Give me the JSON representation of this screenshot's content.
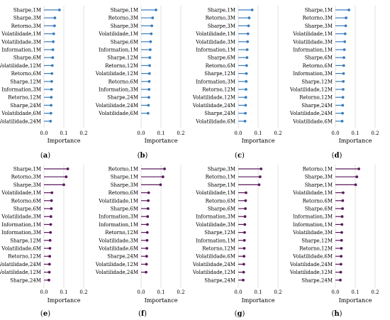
{
  "chart_data": [
    {
      "type": "lollipop",
      "panel_label": "a",
      "xlabel": "Importance",
      "xlim": [
        0,
        0.2
      ],
      "xticks": [
        "0.0",
        "0.1",
        "0.2"
      ],
      "color": "#3a7ebf",
      "categories": [
        "Sharpe,1M",
        "Sharpe,3M",
        "Retorno,3M",
        "Volatilidade,1M",
        "Volatilidade,3M",
        "Information,1M",
        "Sharpe,6M",
        "Volatilidade,12M",
        "Retorno,6M",
        "Sharpe,12M",
        "Information,3M",
        "Retorno,12M",
        "Sharpe,24M",
        "Volatilidade,6M",
        "Volatilidade,24M"
      ],
      "values": [
        0.078,
        0.055,
        0.053,
        0.049,
        0.047,
        0.045,
        0.044,
        0.042,
        0.04,
        0.039,
        0.038,
        0.037,
        0.036,
        0.035,
        0.033
      ]
    },
    {
      "type": "lollipop",
      "panel_label": "b",
      "xlabel": "Importance",
      "xlim": [
        0,
        0.2
      ],
      "xticks": [
        "0.0",
        "0.1",
        "0.2"
      ],
      "color": "#3a7ebf",
      "categories": [
        "Sharpe,1M",
        "Retorno,3M",
        "Sharpe,3M",
        "Volatilidade,1M",
        "Sharpe,6M",
        "Information,1M",
        "Sharpe,12M",
        "Retorno,12M",
        "Volatilidade,12M",
        "Retorno,6M",
        "Information,3M",
        "Sharpe,24M",
        "Volatilidade,24M",
        "Volatilidade,6M"
      ],
      "values": [
        0.075,
        0.058,
        0.054,
        0.051,
        0.048,
        0.046,
        0.044,
        0.043,
        0.042,
        0.041,
        0.04,
        0.039,
        0.037,
        0.035
      ]
    },
    {
      "type": "lollipop",
      "panel_label": "c",
      "xlabel": "Importance",
      "xlim": [
        0,
        0.2
      ],
      "xticks": [
        "0.0",
        "0.1",
        "0.2"
      ],
      "color": "#3a7ebf",
      "categories": [
        "Sharpe,1M",
        "Retorno,3M",
        "Sharpe,3M",
        "Volatilidade,1M",
        "Volatilidade,3M",
        "Information,1M",
        "Sharpe,6M",
        "Retorno,6M",
        "Sharpe,12M",
        "Information,3M",
        "Retorno,12M",
        "Volatilidade,12M",
        "Volatilidade,24M",
        "Sharpe,24M",
        "Volatilidade,6M"
      ],
      "values": [
        0.07,
        0.055,
        0.052,
        0.049,
        0.047,
        0.045,
        0.044,
        0.042,
        0.041,
        0.04,
        0.039,
        0.038,
        0.037,
        0.036,
        0.034
      ]
    },
    {
      "type": "lollipop",
      "panel_label": "d",
      "xlabel": "Importance",
      "xlim": [
        0,
        0.2
      ],
      "xticks": [
        "0.0",
        "0.1",
        "0.2"
      ],
      "color": "#3a7ebf",
      "categories": [
        "Sharpe,1M",
        "Retorno,3M",
        "Sharpe,3M",
        "Volatilidade,1M",
        "Volatilidade,3M",
        "Information,1M",
        "Sharpe,6M",
        "Retorno,6M",
        "Information,3M",
        "Sharpe,12M",
        "Volatilidade,12M",
        "Retorno,12M",
        "Sharpe,24M",
        "Volatilidade,24M",
        "Volatilidade,6M"
      ],
      "values": [
        0.068,
        0.054,
        0.052,
        0.049,
        0.047,
        0.045,
        0.043,
        0.042,
        0.041,
        0.04,
        0.039,
        0.038,
        0.037,
        0.036,
        0.034
      ]
    },
    {
      "type": "lollipop",
      "panel_label": "e",
      "xlabel": "Importance",
      "xlim": [
        0,
        0.2
      ],
      "xticks": [
        "0.0",
        "0.1",
        "0.2"
      ],
      "color": "#5b1a5e",
      "categories": [
        "Sharpe,1M",
        "Retorno,3M",
        "Sharpe,3M",
        "Volatilidade,1M",
        "Retorno,6M",
        "Sharpe,6M",
        "Volatilidade,3M",
        "Information,1M",
        "Information,3M",
        "Sharpe,12M",
        "Volatilidade,6M",
        "Retorno,12M",
        "Volatilidade,24M",
        "Volatilidade,12M",
        "Sharpe,24M"
      ],
      "values": [
        0.12,
        0.112,
        0.1,
        0.04,
        0.038,
        0.037,
        0.035,
        0.034,
        0.033,
        0.031,
        0.03,
        0.029,
        0.028,
        0.027,
        0.025
      ]
    },
    {
      "type": "lollipop",
      "panel_label": "f",
      "xlabel": "Importance",
      "xlim": [
        0,
        0.2
      ],
      "xticks": [
        "0.0",
        "0.1",
        "0.2"
      ],
      "color": "#5b1a5e",
      "categories": [
        "Retorno,1M",
        "Sharpe,1M",
        "Sharpe,3M",
        "Retorno,6M",
        "Volatilidade,1M",
        "Sharpe,6M",
        "Information,3M",
        "Information,1M",
        "Retorno,12M",
        "Volatilidade,3M",
        "Volatilidade,6M",
        "Sharpe,24M",
        "Volatilidade,12M",
        "Volatilidade,24M"
      ],
      "values": [
        0.118,
        0.11,
        0.098,
        0.038,
        0.036,
        0.035,
        0.033,
        0.032,
        0.031,
        0.03,
        0.029,
        0.028,
        0.027,
        0.025
      ]
    },
    {
      "type": "lollipop",
      "panel_label": "g",
      "xlabel": "Importance",
      "xlim": [
        0,
        0.2
      ],
      "xticks": [
        "0.0",
        "0.1",
        "0.2"
      ],
      "color": "#5b1a5e",
      "categories": [
        "Sharpe,3M",
        "Retorno,1M",
        "Sharpe,1M",
        "Volatilidade,1M",
        "Retorno,6M",
        "Sharpe,6M",
        "Information,3M",
        "Volatilidade,3M",
        "Sharpe,12M",
        "Information,1M",
        "Retorno,12M",
        "Volatilidade,6M",
        "Volatilidade,24M",
        "Volatilidade,12M",
        "Sharpe,24M"
      ],
      "values": [
        0.115,
        0.11,
        0.105,
        0.039,
        0.037,
        0.036,
        0.034,
        0.033,
        0.032,
        0.031,
        0.03,
        0.029,
        0.028,
        0.027,
        0.025
      ]
    },
    {
      "type": "lollipop",
      "panel_label": "h",
      "xlabel": "Importance",
      "xlim": [
        0,
        0.2
      ],
      "xticks": [
        "0.0",
        "0.1",
        "0.2"
      ],
      "color": "#5b1a5e",
      "categories": [
        "Retorno,1M",
        "Sharpe,3M",
        "Sharpe,1M",
        "Volatilidade,1M",
        "Retorno,6M",
        "Sharpe,6M",
        "Information,3M",
        "Information,1M",
        "Volatilidade,3M",
        "Sharpe,12M",
        "Retorno,12M",
        "Volatilidade,6M",
        "Volatilidade,24M",
        "Volatilidade,12M",
        "Sharpe,24M"
      ],
      "values": [
        0.118,
        0.108,
        0.102,
        0.039,
        0.037,
        0.036,
        0.034,
        0.033,
        0.032,
        0.031,
        0.03,
        0.029,
        0.028,
        0.027,
        0.025
      ]
    }
  ]
}
